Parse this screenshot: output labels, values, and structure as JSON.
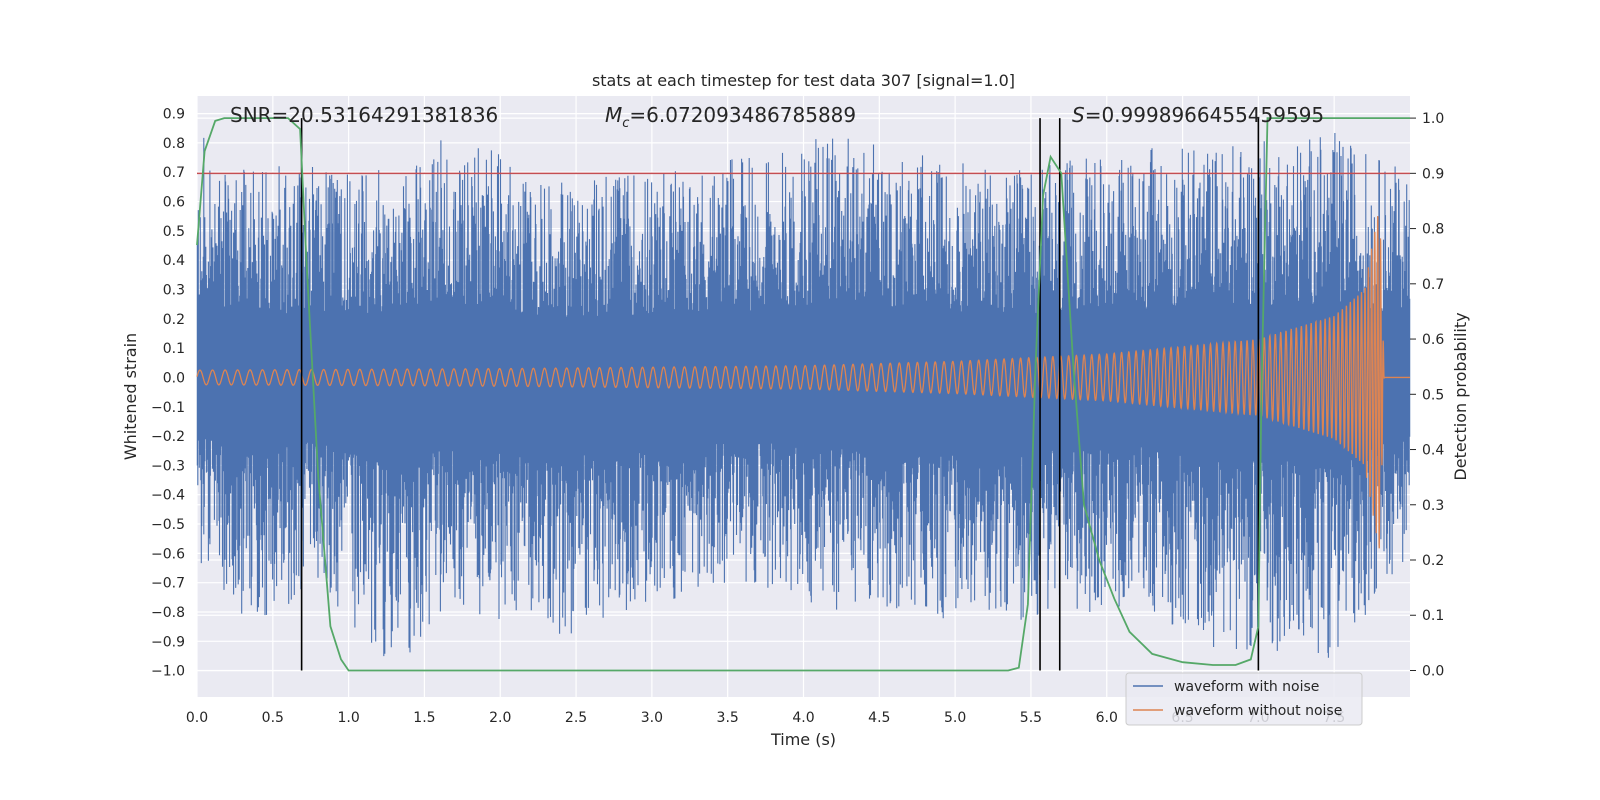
{
  "chart_data": {
    "type": "line",
    "title": "stats at each timestep for test data 307 [signal=1.0]",
    "xlabel": "Time (s)",
    "ylabel": "Whitened strain",
    "y2label": "Detection probability",
    "xlim": [
      0.0,
      8.0
    ],
    "ylim": [
      -1.09,
      0.96
    ],
    "y2lim": [
      -0.048,
      1.04
    ],
    "grid": true,
    "legend_position": "bottom-right",
    "xticks": [
      "0.0",
      "0.5",
      "1.0",
      "1.5",
      "2.0",
      "2.5",
      "3.0",
      "3.5",
      "4.0",
      "4.5",
      "5.0",
      "5.5",
      "6.0",
      "6.5",
      "7.0",
      "7.5"
    ],
    "yticks": [
      "−1.0",
      "−0.9",
      "−0.8",
      "−0.7",
      "−0.6",
      "−0.5",
      "−0.4",
      "−0.3",
      "−0.2",
      "−0.1",
      "0.0",
      "0.1",
      "0.2",
      "0.3",
      "0.4",
      "0.5",
      "0.6",
      "0.7",
      "0.8",
      "0.9"
    ],
    "y2ticks": [
      "0.0",
      "0.1",
      "0.2",
      "0.3",
      "0.4",
      "0.5",
      "0.6",
      "0.7",
      "0.8",
      "0.9",
      "1.0"
    ],
    "annotations": {
      "snr": "SNR=20.53164291381836",
      "mc_symbol": "M",
      "mc_subscript": "c",
      "mc_value": "=6.072093486785889",
      "s_symbol": "S",
      "s_value": "=0.9998966455459595"
    },
    "threshold": {
      "y2": 0.9,
      "color": "#c44e52"
    },
    "vertical_lines_x": [
      0.69,
      5.56,
      5.69,
      7.0
    ],
    "series": [
      {
        "name": "waveform with noise",
        "color": "#4c72b0",
        "envelope_points": [
          {
            "x": 0.0,
            "upper": 0.62,
            "lower": -0.62
          },
          {
            "x": 0.05,
            "upper": 0.88,
            "lower": -0.66
          },
          {
            "x": 0.28,
            "upper": 0.74,
            "lower": -0.88
          },
          {
            "x": 0.8,
            "upper": 0.72,
            "lower": -0.72
          },
          {
            "x": 1.3,
            "upper": 0.72,
            "lower": -1.0
          },
          {
            "x": 1.7,
            "upper": 0.84,
            "lower": -0.78
          },
          {
            "x": 2.3,
            "upper": 0.68,
            "lower": -0.91
          },
          {
            "x": 3.5,
            "upper": 0.74,
            "lower": -0.7
          },
          {
            "x": 4.17,
            "upper": 0.84,
            "lower": -0.8
          },
          {
            "x": 5.3,
            "upper": 0.7,
            "lower": -0.84
          },
          {
            "x": 6.2,
            "upper": 0.78,
            "lower": -0.78
          },
          {
            "x": 6.7,
            "upper": 0.8,
            "lower": -0.92
          },
          {
            "x": 7.5,
            "upper": 0.84,
            "lower": -0.96
          },
          {
            "x": 8.0,
            "upper": 0.7,
            "lower": -0.6
          }
        ]
      },
      {
        "name": "waveform without noise",
        "color": "#dd8452",
        "envelope": [
          {
            "x": 0.0,
            "amp": 0.025
          },
          {
            "x": 2.0,
            "amp": 0.03
          },
          {
            "x": 4.0,
            "amp": 0.04
          },
          {
            "x": 5.0,
            "amp": 0.055
          },
          {
            "x": 6.0,
            "amp": 0.08
          },
          {
            "x": 7.0,
            "amp": 0.13
          },
          {
            "x": 7.5,
            "amp": 0.21
          },
          {
            "x": 7.7,
            "amp": 0.3
          },
          {
            "x": 7.8,
            "amp": 0.6
          },
          {
            "x": 7.83,
            "amp": 0.0
          },
          {
            "x": 8.0,
            "amp": 0.0
          }
        ]
      },
      {
        "name": "detection probability",
        "axis": "y2",
        "color": "#55a868",
        "x": [
          0.0,
          0.05,
          0.12,
          0.18,
          0.3,
          0.45,
          0.6,
          0.68,
          0.72,
          0.8,
          0.88,
          0.95,
          1.0,
          1.5,
          2.0,
          3.0,
          4.0,
          5.0,
          5.35,
          5.42,
          5.48,
          5.53,
          5.58,
          5.63,
          5.7,
          5.78,
          5.85,
          5.95,
          6.05,
          6.15,
          6.3,
          6.5,
          6.7,
          6.85,
          6.95,
          7.0,
          7.02,
          7.06,
          7.15,
          8.0
        ],
        "y": [
          0.77,
          0.94,
          0.995,
          1.0,
          1.0,
          1.0,
          1.0,
          0.98,
          0.75,
          0.35,
          0.08,
          0.02,
          0.0,
          0.0,
          0.0,
          0.0,
          0.0,
          0.0,
          0.0,
          0.005,
          0.12,
          0.55,
          0.86,
          0.93,
          0.9,
          0.55,
          0.3,
          0.2,
          0.13,
          0.07,
          0.03,
          0.015,
          0.01,
          0.01,
          0.02,
          0.08,
          0.5,
          1.0,
          1.0,
          1.0
        ]
      }
    ]
  }
}
